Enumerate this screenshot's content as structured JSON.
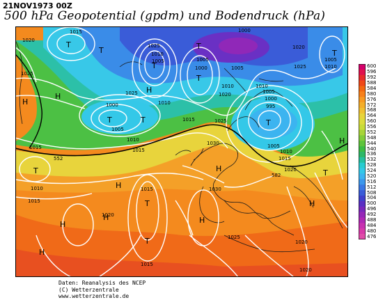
{
  "header": {
    "date": "21NOV1973 00Z",
    "title": "500 hPa Geopotential (gpdm) und Bodendruck (hPa)"
  },
  "legend": {
    "labels": [
      "600",
      "596",
      "592",
      "588",
      "584",
      "580",
      "576",
      "572",
      "568",
      "564",
      "560",
      "556",
      "552",
      "548",
      "544",
      "540",
      "536",
      "532",
      "528",
      "524",
      "520",
      "516",
      "512",
      "508",
      "504",
      "500",
      "496",
      "492",
      "488",
      "484",
      "480",
      "476"
    ],
    "colors": [
      "#d4006a",
      "#e0104e",
      "#e82a2a",
      "#f04818",
      "#f46810",
      "#f8801a",
      "#f89a22",
      "#f4ae2a",
      "#f0c032",
      "#e8d43a",
      "#dcdc3c",
      "#c8dc38",
      "#a8d438",
      "#82cc3a",
      "#5ec43c",
      "#3cbc44",
      "#2cb868",
      "#24c0a0",
      "#28ccd0",
      "#34c8e8",
      "#3cb4f0",
      "#3c98ec",
      "#3a78e4",
      "#3a5cd8",
      "#4040cc",
      "#5a30c4",
      "#7a28bc",
      "#9628b8",
      "#b028b4",
      "#c830b0",
      "#d83aa8",
      "#e04ca8"
    ]
  },
  "isobar_labels": [
    "1015",
    "1020",
    "1025",
    "1010",
    "1005",
    "1000",
    "995",
    "1030",
    "552",
    "582"
  ],
  "pressure_centers": [
    {
      "type": "T"
    },
    {
      "type": "T"
    },
    {
      "type": "T"
    },
    {
      "type": "T"
    },
    {
      "type": "T"
    },
    {
      "type": "T"
    },
    {
      "type": "T"
    },
    {
      "type": "T"
    },
    {
      "type": "T"
    },
    {
      "type": "T"
    },
    {
      "type": "T"
    },
    {
      "type": "T"
    },
    {
      "type": "T"
    },
    {
      "type": "H"
    },
    {
      "type": "H"
    },
    {
      "type": "H"
    },
    {
      "type": "H"
    },
    {
      "type": "H"
    },
    {
      "type": "H"
    },
    {
      "type": "H"
    },
    {
      "type": "H"
    },
    {
      "type": "H"
    },
    {
      "type": "H"
    },
    {
      "type": "H"
    }
  ],
  "credits": {
    "line1": "Daten: Reanalysis des NCEP",
    "line2": "(C) Wetterzentrale",
    "line3": "www.wetterzentrale.de"
  }
}
